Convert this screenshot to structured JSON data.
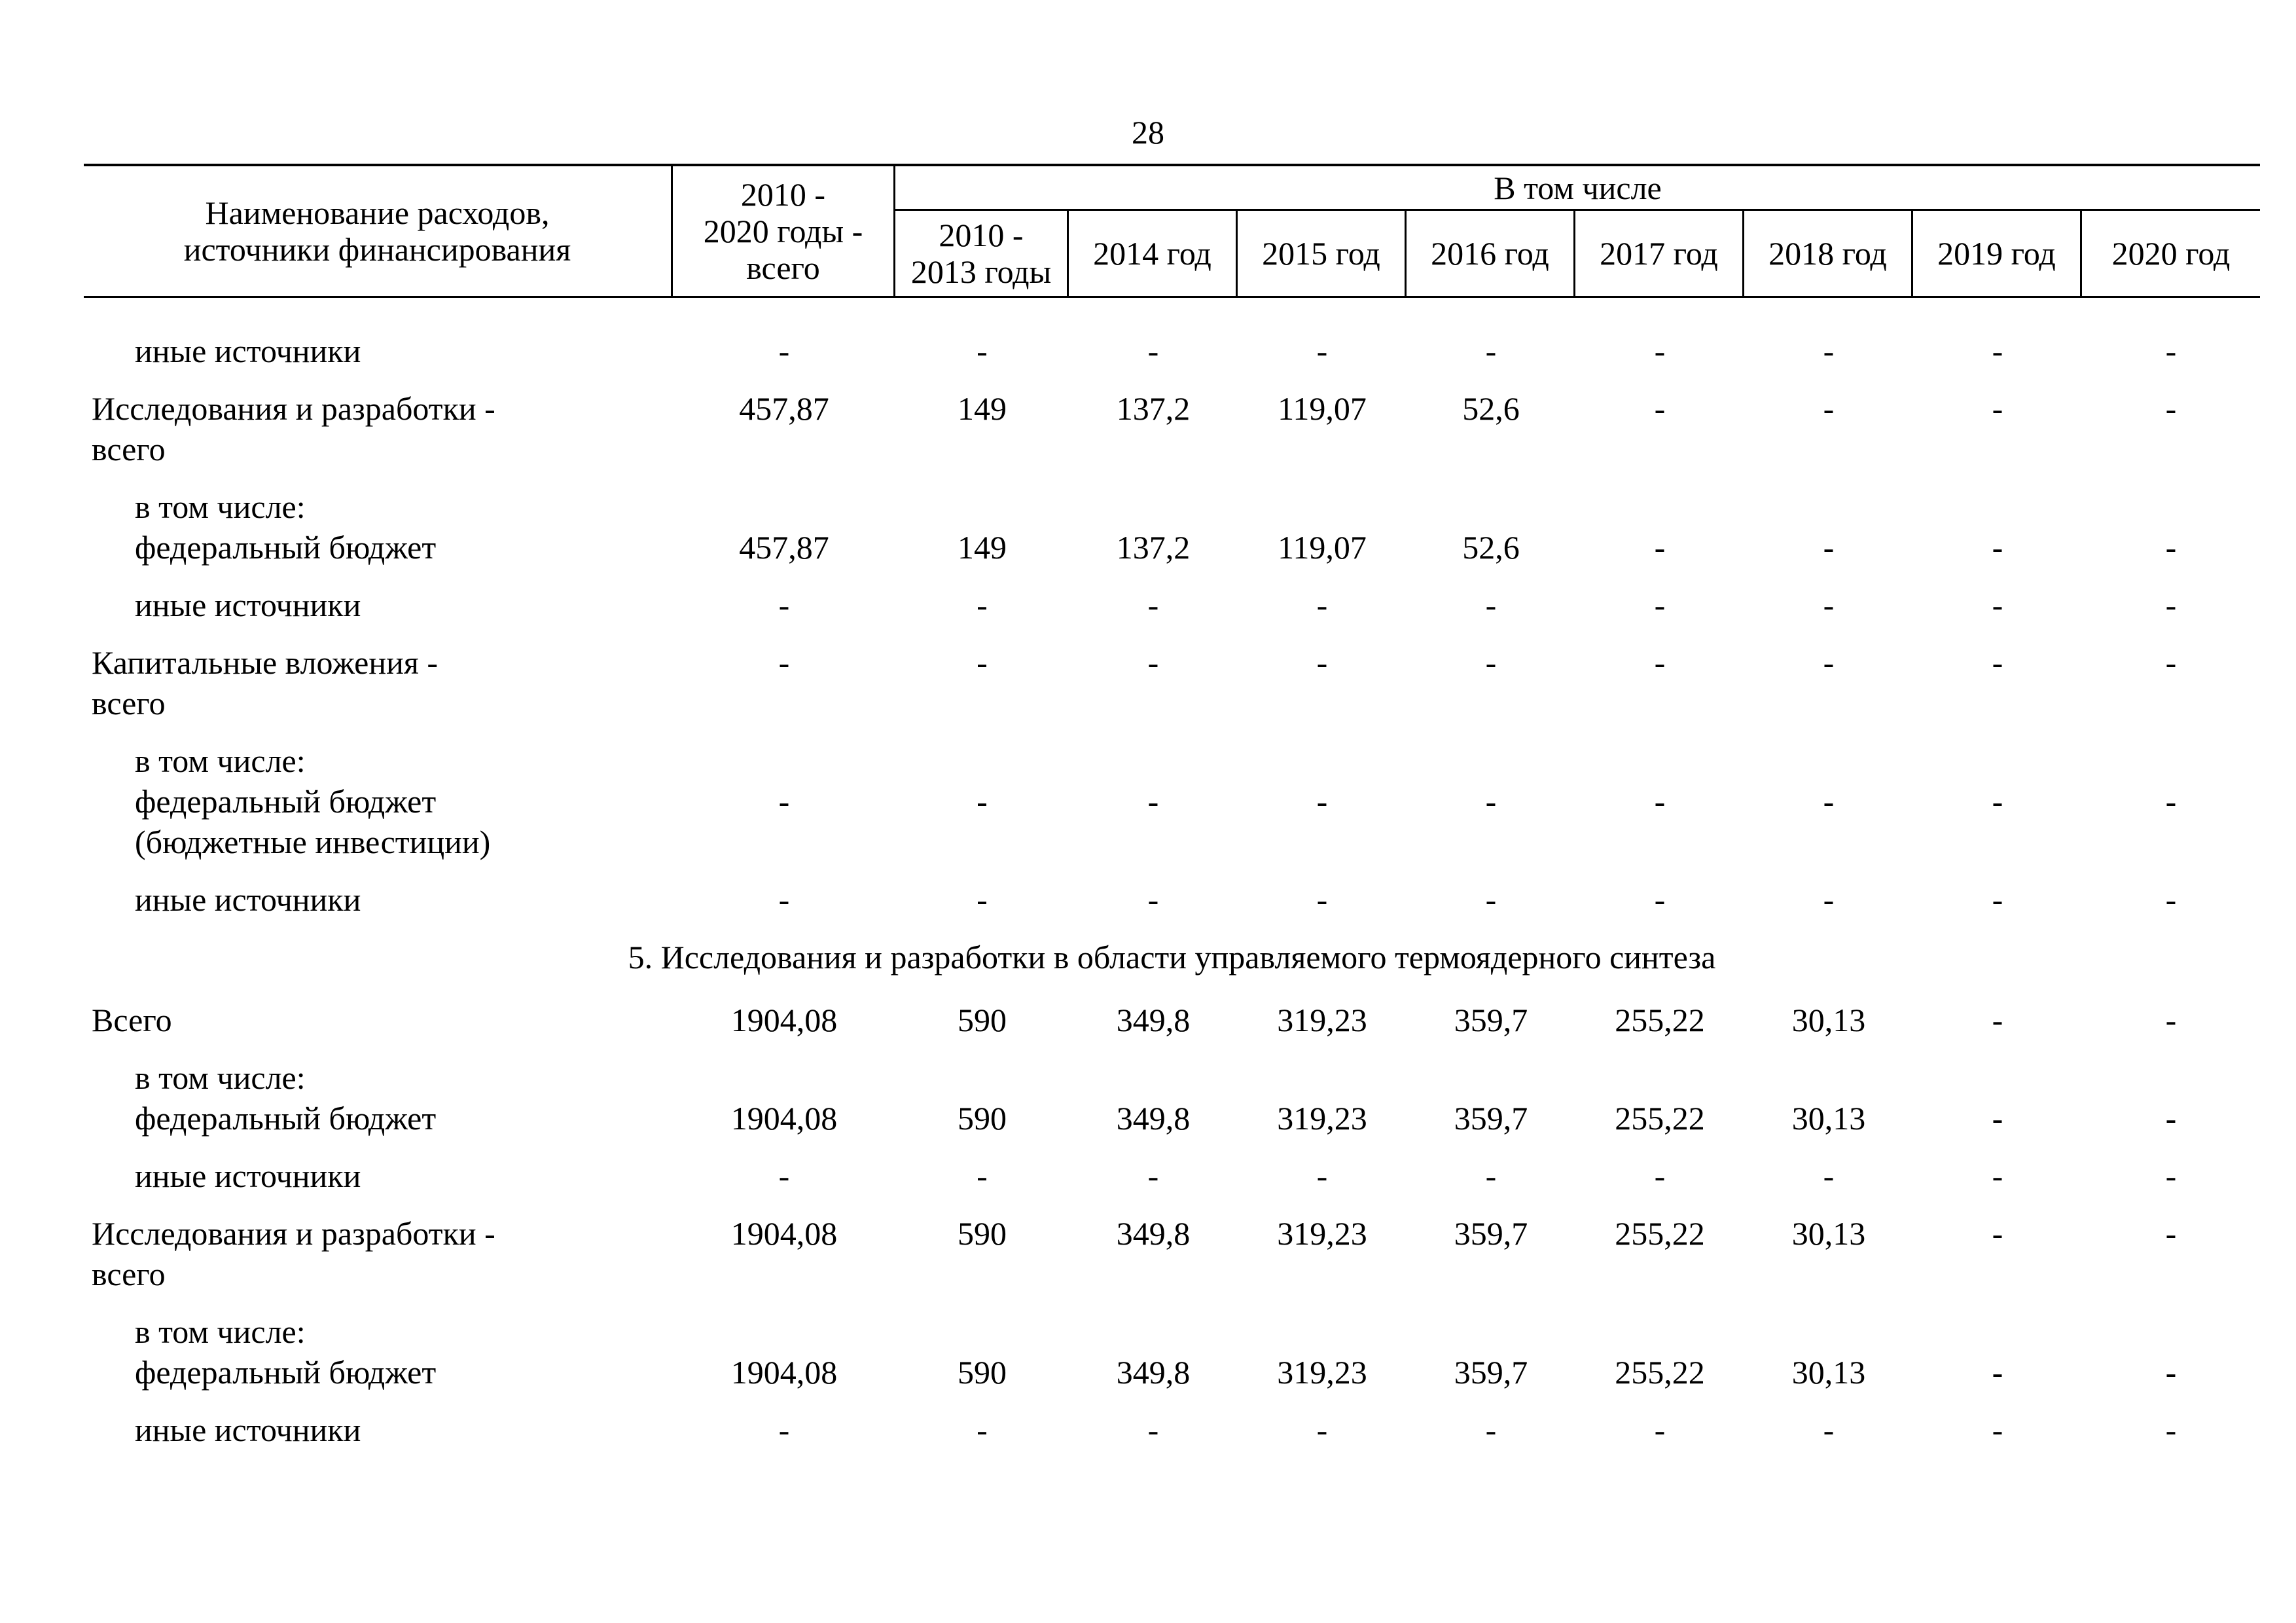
{
  "page_number": "28",
  "colors": {
    "text": "#000000",
    "background": "#ffffff",
    "border": "#000000"
  },
  "table": {
    "header": {
      "name_col": [
        "Наименование расходов,",
        "источники финансирования"
      ],
      "total_col": [
        "2010 -",
        "2020 годы -",
        "всего"
      ],
      "group_label": "В том числе",
      "year_cols": [
        [
          "2010 -",
          "2013 годы"
        ],
        [
          "2014 год"
        ],
        [
          "2015 год"
        ],
        [
          "2016 год"
        ],
        [
          "2017 год"
        ],
        [
          "2018 год"
        ],
        [
          "2019 год"
        ],
        [
          "2020 год"
        ]
      ]
    },
    "rows": [
      {
        "indent": 1,
        "label": "иные источники",
        "values": [
          "-",
          "-",
          "-",
          "-",
          "-",
          "-",
          "-",
          "-",
          "-"
        ]
      },
      {
        "indent": 0,
        "label": "Исследования и разработки -",
        "post": "всего",
        "values": [
          "457,87",
          "149",
          "137,2",
          "119,07",
          "52,6",
          "-",
          "-",
          "-",
          "-"
        ]
      },
      {
        "indent": 1,
        "pre": "в том числе:",
        "label": "федеральный бюджет",
        "values": [
          "457,87",
          "149",
          "137,2",
          "119,07",
          "52,6",
          "-",
          "-",
          "-",
          "-"
        ]
      },
      {
        "indent": 1,
        "label": "иные источники",
        "values": [
          "-",
          "-",
          "-",
          "-",
          "-",
          "-",
          "-",
          "-",
          "-"
        ]
      },
      {
        "indent": 0,
        "label": "Капитальные вложения -",
        "post": "всего",
        "values": [
          "-",
          "-",
          "-",
          "-",
          "-",
          "-",
          "-",
          "-",
          "-"
        ]
      },
      {
        "indent": 1,
        "pre": "в том числе:",
        "label": "федеральный бюджет",
        "post": "(бюджетные инвестиции)",
        "values": [
          "-",
          "-",
          "-",
          "-",
          "-",
          "-",
          "-",
          "-",
          "-"
        ]
      },
      {
        "indent": 1,
        "label": "иные источники",
        "values": [
          "-",
          "-",
          "-",
          "-",
          "-",
          "-",
          "-",
          "-",
          "-"
        ]
      },
      {
        "section_title": "5. Исследования и разработки в области управляемого термоядерного синтеза"
      },
      {
        "indent": 0,
        "label": "Всего",
        "values": [
          "1904,08",
          "590",
          "349,8",
          "319,23",
          "359,7",
          "255,22",
          "30,13",
          "-",
          "-"
        ]
      },
      {
        "indent": 1,
        "pre": "в том числе:",
        "label": "федеральный бюджет",
        "values": [
          "1904,08",
          "590",
          "349,8",
          "319,23",
          "359,7",
          "255,22",
          "30,13",
          "-",
          "-"
        ]
      },
      {
        "indent": 1,
        "label": "иные источники",
        "values": [
          "-",
          "-",
          "-",
          "-",
          "-",
          "-",
          "-",
          "-",
          "-"
        ]
      },
      {
        "indent": 0,
        "label": "Исследования и разработки -",
        "post": "всего",
        "values": [
          "1904,08",
          "590",
          "349,8",
          "319,23",
          "359,7",
          "255,22",
          "30,13",
          "-",
          "-"
        ]
      },
      {
        "indent": 1,
        "pre": "в том числе:",
        "label": "федеральный бюджет",
        "values": [
          "1904,08",
          "590",
          "349,8",
          "319,23",
          "359,7",
          "255,22",
          "30,13",
          "-",
          "-"
        ]
      },
      {
        "indent": 1,
        "label": "иные источники",
        "values": [
          "-",
          "-",
          "-",
          "-",
          "-",
          "-",
          "-",
          "-",
          "-"
        ]
      }
    ]
  }
}
